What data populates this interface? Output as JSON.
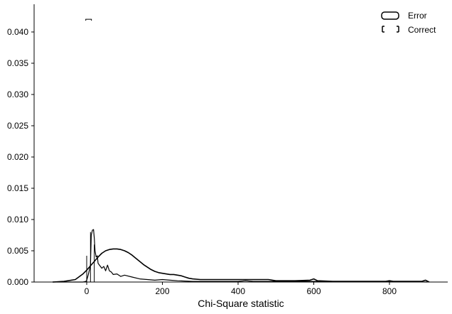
{
  "chart_data": {
    "type": "line",
    "title": "",
    "xlabel": "Chi-Square statistic",
    "ylabel": "",
    "xlim": [
      -100,
      950
    ],
    "ylim": [
      0,
      0.0435
    ],
    "x_ticks": [
      0,
      200,
      400,
      600,
      800
    ],
    "y_ticks": [
      0.0,
      0.005,
      0.01,
      0.015,
      0.02,
      0.025,
      0.03,
      0.035,
      0.04
    ],
    "y_tick_labels": [
      "0.000",
      "0.005",
      "0.010",
      "0.015",
      "0.020",
      "0.025",
      "0.030",
      "0.035",
      "0.040"
    ],
    "x_tick_labels": [
      "0",
      "200",
      "400",
      "600",
      "800"
    ],
    "grid": false,
    "legend": {
      "placement": "top-right"
    },
    "series": [
      {
        "name": "Error",
        "style": "solid",
        "color": "#000000",
        "x": [
          -90,
          -60,
          -30,
          -10,
          0,
          10,
          20,
          30,
          40,
          50,
          60,
          70,
          80,
          90,
          100,
          110,
          120,
          130,
          140,
          150,
          160,
          170,
          180,
          190,
          200,
          210,
          220,
          230,
          240,
          250,
          260,
          270,
          280,
          300,
          350,
          400,
          450,
          480,
          500,
          550,
          590,
          600,
          610,
          650,
          700,
          750,
          790,
          800,
          810,
          850,
          885,
          895,
          905
        ],
        "y": [
          0,
          0.0001,
          0.0004,
          0.0013,
          0.0019,
          0.0026,
          0.0033,
          0.004,
          0.0046,
          0.005,
          0.0052,
          0.0053,
          0.0053,
          0.0052,
          0.005,
          0.0047,
          0.0043,
          0.0038,
          0.0033,
          0.0028,
          0.0024,
          0.002,
          0.0017,
          0.0015,
          0.0014,
          0.0013,
          0.0012,
          0.0012,
          0.0011,
          0.001,
          0.0008,
          0.0006,
          0.0005,
          0.0004,
          0.0004,
          0.0004,
          0.0004,
          0.0004,
          0.0002,
          0.0002,
          0.0003,
          0.0005,
          0.0002,
          0.0001,
          0.0001,
          0.0001,
          0.0001,
          0.0002,
          0.0001,
          0.0001,
          0.0001,
          0.0003,
          0
        ]
      },
      {
        "name": "Correct",
        "style": "solid",
        "color": "#000000",
        "x": [
          -90,
          -10,
          -2,
          0,
          2,
          5,
          8,
          10,
          12,
          15,
          18,
          20,
          22,
          25,
          28,
          30,
          35,
          40,
          45,
          50,
          55,
          60,
          65,
          70,
          80,
          90,
          100,
          120,
          140,
          160,
          180,
          200,
          220,
          240,
          280,
          400,
          420,
          440,
          600,
          800,
          900
        ],
        "y": [
          0,
          0,
          0.0001,
          0.0003,
          0.0007,
          0.0014,
          0.0022,
          0.0028,
          0.0075,
          0.0083,
          0.0084,
          0.007,
          0.005,
          0.004,
          0.0042,
          0.003,
          0.0026,
          0.0022,
          0.0025,
          0.0018,
          0.0027,
          0.0018,
          0.0016,
          0.0012,
          0.0013,
          0.0009,
          0.0011,
          0.0008,
          0.0005,
          0.0004,
          0.0003,
          0.0004,
          0.0003,
          0.0002,
          0.0001,
          0.0001,
          0.0002,
          0.0001,
          0.0001,
          0.0001,
          0
        ]
      }
    ],
    "vertical_spikes": [
      {
        "x": 0,
        "y": 0.0042
      },
      {
        "x": 10,
        "y": 0.008
      },
      {
        "x": 20,
        "y": 0.006
      }
    ]
  }
}
